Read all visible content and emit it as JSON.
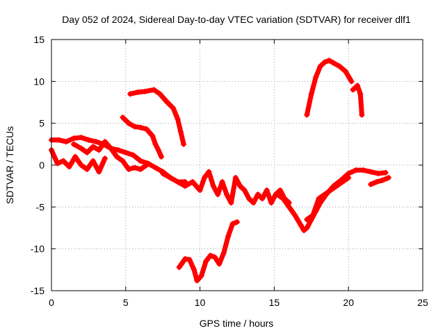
{
  "chart_data": {
    "type": "scatter",
    "title": "Day 052 of 2024, Sidereal Day-to-day VTEC variation (SDTVAR) for receiver dlf1",
    "xlabel": "GPS time / hours",
    "ylabel": "SDTVAR / TECUs",
    "xlim": [
      0,
      25
    ],
    "ylim": [
      -15,
      15
    ],
    "xticks": [
      0,
      5,
      10,
      15,
      20,
      25
    ],
    "yticks": [
      -15,
      -10,
      -5,
      0,
      5,
      10,
      15
    ],
    "grid": true,
    "legend": "none",
    "marker": "plus",
    "series_color": "#ff0000",
    "series": [
      {
        "name": "arc-upper-1",
        "x": [
          5.3,
          5.8,
          6.3,
          6.9,
          7.3,
          7.8,
          8.2,
          8.5,
          8.7,
          8.9
        ],
        "y": [
          8.5,
          8.7,
          8.8,
          9.0,
          8.5,
          7.5,
          6.8,
          5.5,
          4.0,
          2.5
        ]
      },
      {
        "name": "arc-upper-2",
        "x": [
          4.8,
          5.2,
          5.6,
          6.0,
          6.4,
          6.8,
          7.0,
          7.2,
          7.4
        ],
        "y": [
          5.7,
          5.0,
          4.6,
          4.5,
          4.3,
          3.5,
          2.5,
          1.8,
          1.0
        ]
      },
      {
        "name": "arc-high",
        "x": [
          17.2,
          17.5,
          17.8,
          18.1,
          18.4,
          18.7,
          19.0,
          19.4,
          19.8,
          20.2
        ],
        "y": [
          6.0,
          8.5,
          10.5,
          11.8,
          12.3,
          12.5,
          12.2,
          11.8,
          11.2,
          10.0
        ]
      },
      {
        "name": "arc-high-tail",
        "x": [
          20.3,
          20.6,
          20.8,
          20.9
        ],
        "y": [
          9.0,
          9.5,
          8.5,
          6.0
        ]
      },
      {
        "name": "arc-main-1",
        "x": [
          0.0,
          0.5,
          1.0,
          1.5,
          2.0,
          2.5,
          3.0,
          3.5,
          4.0,
          4.5,
          5.0,
          5.5,
          6.0,
          6.5,
          7.0,
          7.5,
          8.0,
          8.5,
          9.0
        ],
        "y": [
          3.0,
          3.0,
          2.8,
          3.2,
          3.3,
          3.0,
          2.8,
          2.5,
          2.0,
          1.8,
          1.5,
          1.2,
          0.5,
          0.2,
          -0.3,
          -0.8,
          -1.5,
          -2.0,
          -2.0
        ]
      },
      {
        "name": "arc-main-2",
        "x": [
          0.0,
          0.4,
          0.8,
          1.2,
          1.6,
          2.0,
          2.4,
          2.8,
          3.2,
          3.6
        ],
        "y": [
          1.8,
          0.2,
          0.5,
          -0.2,
          1.0,
          0.0,
          -0.5,
          0.5,
          -0.8,
          0.8
        ]
      },
      {
        "name": "arc-main-3",
        "x": [
          1.5,
          2.0,
          2.4,
          2.8,
          3.2,
          3.6,
          4.0,
          4.4,
          4.8,
          5.2,
          5.6,
          6.0,
          6.4
        ],
        "y": [
          2.5,
          2.0,
          1.5,
          2.2,
          1.8,
          2.8,
          2.0,
          1.0,
          0.5,
          -0.5,
          -0.3,
          -0.5,
          0.0
        ]
      },
      {
        "name": "arc-mid",
        "x": [
          7.5,
          8.0,
          8.5,
          9.0,
          9.5,
          10.0,
          10.3,
          10.6,
          10.9,
          11.2,
          11.5,
          11.8,
          12.1,
          12.4,
          12.7,
          13.0,
          13.3,
          13.6,
          13.9,
          14.2,
          14.5,
          14.8,
          15.1,
          15.4,
          15.7,
          16.0
        ],
        "y": [
          -1.0,
          -1.5,
          -2.0,
          -2.5,
          -2.0,
          -3.0,
          -1.5,
          -0.8,
          -2.5,
          -3.5,
          -2.0,
          -3.5,
          -4.5,
          -1.5,
          -2.5,
          -3.0,
          -4.0,
          -4.5,
          -3.5,
          -4.0,
          -3.0,
          -4.5,
          -3.5,
          -3.0,
          -4.0,
          -4.5
        ]
      },
      {
        "name": "arc-dip",
        "x": [
          15.2,
          15.6,
          16.0,
          16.4,
          16.8,
          17.0,
          17.2,
          17.5,
          17.8,
          18.1,
          18.5,
          19.0,
          19.5,
          20.0,
          20.5,
          21.0,
          21.5,
          22.0,
          22.5
        ],
        "y": [
          -3.5,
          -4.0,
          -5.0,
          -6.0,
          -7.2,
          -7.8,
          -7.5,
          -6.5,
          -5.5,
          -4.5,
          -3.5,
          -2.5,
          -1.8,
          -1.0,
          -0.6,
          -0.6,
          -0.8,
          -1.0,
          -0.9
        ]
      },
      {
        "name": "arc-dip-2",
        "x": [
          17.2,
          17.6,
          18.0,
          18.4,
          18.8,
          19.2,
          19.6,
          20.0
        ],
        "y": [
          -6.5,
          -6.0,
          -4.0,
          -3.5,
          -3.0,
          -2.5,
          -2.0,
          -1.5
        ]
      },
      {
        "name": "arc-right-tail",
        "x": [
          21.5,
          21.9,
          22.3,
          22.7
        ],
        "y": [
          -2.3,
          -2.0,
          -1.8,
          -1.5
        ]
      },
      {
        "name": "arc-low",
        "x": [
          8.6,
          9.0,
          9.3,
          9.6,
          9.8,
          10.1,
          10.4,
          10.7,
          11.0,
          11.3,
          11.6,
          11.9,
          12.2,
          12.5
        ],
        "y": [
          -12.2,
          -11.2,
          -11.3,
          -12.5,
          -13.8,
          -13.2,
          -11.5,
          -10.8,
          -11.0,
          -11.8,
          -10.5,
          -8.5,
          -7.0,
          -6.8
        ]
      }
    ]
  }
}
